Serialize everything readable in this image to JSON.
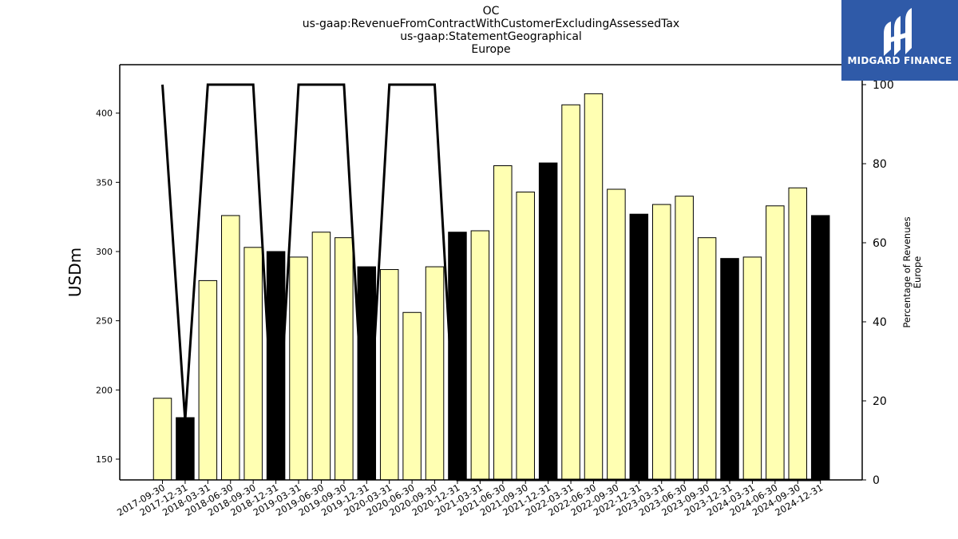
{
  "chart_data": {
    "type": "bar",
    "title_lines": [
      "OC",
      "us-gaap:RevenueFromContractWithCustomerExcludingAssessedTax",
      "us-gaap:StatementGeographical",
      "Europe"
    ],
    "ylabel": "USDm",
    "y2label_lines": [
      "Percentage of Revenues",
      "Europe"
    ],
    "ylim": [
      135,
      435
    ],
    "y2lim": [
      0,
      100
    ],
    "yticks": [
      150,
      200,
      250,
      300,
      350,
      400
    ],
    "y2ticks": [
      0,
      20,
      40,
      60,
      80,
      100
    ],
    "categories": [
      "2017-09-30",
      "2017-12-31",
      "2018-03-31",
      "2018-06-30",
      "2018-09-30",
      "2018-12-31",
      "2019-03-31",
      "2019-06-30",
      "2019-09-30",
      "2019-12-31",
      "2020-03-31",
      "2020-06-30",
      "2020-09-30",
      "2020-12-31",
      "2021-03-31",
      "2021-06-30",
      "2021-09-30",
      "2021-12-31",
      "2022-03-31",
      "2022-06-30",
      "2022-09-30",
      "2022-12-31",
      "2023-03-31",
      "2023-06-30",
      "2023-09-30",
      "2023-12-31",
      "2024-03-31",
      "2024-06-30",
      "2024-09-30",
      "2024-12-31"
    ],
    "values": [
      194,
      180,
      279,
      326,
      303,
      300,
      296,
      314,
      310,
      289,
      287,
      256,
      289,
      314,
      315,
      362,
      343,
      364,
      406,
      414,
      345,
      327,
      334,
      340,
      310,
      295,
      296,
      333,
      346,
      326
    ],
    "year_end": [
      false,
      true,
      false,
      false,
      false,
      true,
      false,
      false,
      false,
      true,
      false,
      false,
      false,
      true,
      false,
      false,
      false,
      true,
      false,
      false,
      false,
      true,
      false,
      false,
      false,
      true,
      false,
      false,
      false,
      true
    ],
    "percentage": [
      100,
      15,
      100,
      100,
      100,
      0,
      100,
      100,
      100,
      0,
      100,
      100,
      100,
      0,
      0,
      0,
      0,
      0,
      0,
      0,
      0,
      0,
      0,
      0,
      0,
      0,
      0,
      0,
      0,
      0
    ],
    "colors": {
      "quarter_bar": "#ffffb2",
      "year_bar": "#000000",
      "line": "#000000"
    }
  },
  "logo": {
    "text": "MIDGARD FINANCE",
    "background": "#2f5aa8"
  }
}
